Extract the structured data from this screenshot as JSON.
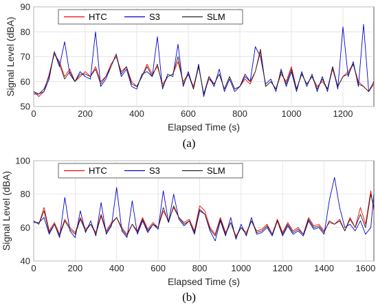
{
  "chart_data": [
    {
      "type": "line",
      "panel_label": "(a)",
      "xlabel": "Elapsed Time (s)",
      "ylabel": "Signal Level (dBA)",
      "xlim": [
        0,
        1320
      ],
      "ylim": [
        50,
        90
      ],
      "xticks": [
        "0",
        "200",
        "400",
        "600",
        "800",
        "1000",
        "1200"
      ],
      "yticks": [
        "50",
        "60",
        "70",
        "80",
        "90"
      ],
      "grid": true,
      "legend": "top-left",
      "series": [
        {
          "name": "HTC",
          "color": "#ff0000",
          "x": [
            0,
            20,
            40,
            60,
            80,
            100,
            120,
            140,
            160,
            180,
            200,
            220,
            240,
            260,
            280,
            300,
            320,
            340,
            360,
            380,
            400,
            420,
            440,
            460,
            480,
            500,
            520,
            540,
            560,
            580,
            600,
            620,
            640,
            660,
            680,
            700,
            720,
            740,
            760,
            780,
            800,
            820,
            840,
            860,
            880,
            900,
            920,
            940,
            960,
            980,
            1000,
            1020,
            1040,
            1060,
            1080,
            1100,
            1120,
            1140,
            1160,
            1180,
            1200,
            1220,
            1240,
            1260,
            1280,
            1300,
            1320
          ],
          "y": [
            56,
            54,
            56,
            63,
            71,
            68,
            62,
            65,
            60,
            62,
            64,
            62,
            66,
            60,
            62,
            67,
            70,
            64,
            66,
            60,
            58,
            62,
            67,
            63,
            66,
            59,
            62,
            63,
            68,
            60,
            63,
            58,
            66,
            55,
            61,
            59,
            63,
            57,
            62,
            57,
            58,
            61,
            59,
            64,
            72,
            58,
            60,
            57,
            63,
            60,
            66,
            57,
            63,
            59,
            62,
            58,
            60,
            57,
            65,
            58,
            62,
            64,
            67,
            60,
            58,
            56,
            59
          ]
        },
        {
          "name": "S3",
          "color": "#0000cc",
          "x": [
            0,
            20,
            40,
            60,
            80,
            100,
            120,
            140,
            160,
            180,
            200,
            220,
            240,
            260,
            280,
            300,
            320,
            340,
            360,
            380,
            400,
            420,
            440,
            460,
            480,
            500,
            520,
            540,
            560,
            580,
            600,
            620,
            640,
            660,
            680,
            700,
            720,
            740,
            760,
            780,
            800,
            820,
            840,
            860,
            880,
            900,
            920,
            940,
            960,
            980,
            1000,
            1020,
            1040,
            1060,
            1080,
            1100,
            1120,
            1140,
            1160,
            1180,
            1200,
            1220,
            1240,
            1260,
            1280,
            1300,
            1320
          ],
          "y": [
            55,
            55,
            56,
            61,
            72,
            66,
            76,
            63,
            60,
            64,
            62,
            61,
            80,
            58,
            61,
            66,
            71,
            62,
            65,
            58,
            57,
            63,
            64,
            62,
            78,
            57,
            63,
            62,
            75,
            58,
            64,
            57,
            67,
            54,
            62,
            58,
            65,
            56,
            61,
            56,
            58,
            63,
            60,
            74,
            70,
            59,
            61,
            56,
            65,
            58,
            64,
            56,
            64,
            58,
            63,
            56,
            62,
            56,
            66,
            57,
            82,
            62,
            68,
            58,
            83,
            56,
            60
          ]
        },
        {
          "name": "SLM",
          "color": "#222222",
          "x": [
            0,
            20,
            40,
            60,
            80,
            100,
            120,
            140,
            160,
            180,
            200,
            220,
            240,
            260,
            280,
            300,
            320,
            340,
            360,
            380,
            400,
            420,
            440,
            460,
            480,
            500,
            520,
            540,
            560,
            580,
            600,
            620,
            640,
            660,
            680,
            700,
            720,
            740,
            760,
            780,
            800,
            820,
            840,
            860,
            880,
            900,
            920,
            940,
            960,
            980,
            1000,
            1020,
            1040,
            1060,
            1080,
            1100,
            1120,
            1140,
            1160,
            1180,
            1200,
            1220,
            1240,
            1260,
            1280,
            1300,
            1320
          ],
          "y": [
            56,
            55,
            57,
            62,
            72,
            67,
            61,
            64,
            60,
            63,
            63,
            62,
            65,
            59,
            62,
            66,
            71,
            63,
            66,
            59,
            58,
            62,
            66,
            62,
            67,
            58,
            62,
            63,
            70,
            59,
            63,
            57,
            66,
            55,
            62,
            59,
            63,
            57,
            62,
            57,
            58,
            62,
            60,
            64,
            73,
            58,
            60,
            57,
            64,
            59,
            65,
            57,
            63,
            59,
            62,
            57,
            61,
            57,
            66,
            58,
            62,
            63,
            67,
            59,
            58,
            56,
            60
          ]
        }
      ]
    },
    {
      "type": "line",
      "panel_label": "(b)",
      "xlabel": "Elapsed Time (s)",
      "ylabel": "Signal Level (dBA)",
      "xlim": [
        0,
        1640
      ],
      "ylim": [
        40,
        100
      ],
      "xticks": [
        "0",
        "200",
        "400",
        "600",
        "800",
        "1000",
        "1200",
        "1400",
        "1600"
      ],
      "yticks": [
        "40",
        "60",
        "80",
        "100"
      ],
      "grid": true,
      "legend": "top-left",
      "series": [
        {
          "name": "HTC",
          "color": "#ff0000",
          "x": [
            0,
            25,
            50,
            75,
            100,
            125,
            150,
            175,
            200,
            225,
            250,
            275,
            300,
            325,
            350,
            375,
            400,
            425,
            450,
            475,
            500,
            525,
            550,
            575,
            600,
            625,
            650,
            675,
            700,
            725,
            750,
            775,
            800,
            825,
            850,
            875,
            900,
            925,
            950,
            975,
            1000,
            1025,
            1050,
            1075,
            1100,
            1125,
            1150,
            1175,
            1200,
            1225,
            1250,
            1275,
            1300,
            1325,
            1350,
            1375,
            1400,
            1425,
            1450,
            1475,
            1500,
            1525,
            1550,
            1575,
            1600,
            1625,
            1640
          ],
          "y": [
            64,
            62,
            72,
            58,
            63,
            56,
            65,
            60,
            57,
            66,
            59,
            62,
            57,
            68,
            58,
            63,
            66,
            60,
            56,
            62,
            58,
            66,
            59,
            63,
            60,
            70,
            64,
            72,
            66,
            63,
            65,
            58,
            73,
            70,
            60,
            56,
            66,
            57,
            63,
            55,
            60,
            57,
            64,
            58,
            59,
            62,
            56,
            65,
            57,
            63,
            58,
            60,
            56,
            66,
            61,
            62,
            58,
            63,
            62,
            65,
            58,
            66,
            60,
            72,
            62,
            82,
            70
          ]
        },
        {
          "name": "S3",
          "color": "#0000cc",
          "x": [
            0,
            25,
            50,
            75,
            100,
            125,
            150,
            175,
            200,
            225,
            250,
            275,
            300,
            325,
            350,
            375,
            400,
            425,
            450,
            475,
            500,
            525,
            550,
            575,
            600,
            625,
            650,
            675,
            700,
            725,
            750,
            775,
            800,
            825,
            850,
            875,
            900,
            925,
            950,
            975,
            1000,
            1025,
            1050,
            1075,
            1100,
            1125,
            1150,
            1175,
            1200,
            1225,
            1250,
            1275,
            1300,
            1325,
            1350,
            1375,
            1400,
            1425,
            1450,
            1475,
            1500,
            1525,
            1550,
            1575,
            1600,
            1625,
            1640
          ],
          "y": [
            63,
            63,
            66,
            56,
            62,
            54,
            78,
            58,
            54,
            70,
            57,
            64,
            55,
            75,
            56,
            61,
            84,
            58,
            54,
            76,
            56,
            64,
            57,
            62,
            59,
            82,
            63,
            80,
            65,
            61,
            64,
            56,
            70,
            68,
            58,
            52,
            64,
            55,
            66,
            53,
            62,
            55,
            66,
            56,
            57,
            60,
            55,
            64,
            55,
            61,
            56,
            58,
            55,
            64,
            59,
            60,
            56,
            76,
            90,
            72,
            60,
            62,
            58,
            64,
            56,
            60,
            80
          ]
        },
        {
          "name": "SLM",
          "color": "#222222",
          "x": [
            0,
            25,
            50,
            75,
            100,
            125,
            150,
            175,
            200,
            225,
            250,
            275,
            300,
            325,
            350,
            375,
            400,
            425,
            450,
            475,
            500,
            525,
            550,
            575,
            600,
            625,
            650,
            675,
            700,
            725,
            750,
            775,
            800,
            825,
            850,
            875,
            900,
            925,
            950,
            975,
            1000,
            1025,
            1050,
            1075,
            1100,
            1125,
            1150,
            1175,
            1200,
            1225,
            1250,
            1275,
            1300,
            1325,
            1350,
            1375,
            1400,
            1425,
            1450,
            1475,
            1500,
            1525,
            1550,
            1575,
            1600,
            1625,
            1640
          ],
          "y": [
            64,
            62,
            70,
            57,
            62,
            55,
            64,
            59,
            56,
            65,
            58,
            62,
            56,
            67,
            57,
            62,
            66,
            59,
            55,
            62,
            57,
            65,
            58,
            62,
            60,
            72,
            63,
            73,
            66,
            62,
            64,
            57,
            71,
            68,
            59,
            55,
            65,
            56,
            63,
            54,
            60,
            56,
            64,
            57,
            58,
            61,
            56,
            64,
            56,
            62,
            57,
            59,
            56,
            65,
            60,
            61,
            57,
            64,
            62,
            64,
            58,
            65,
            60,
            68,
            60,
            80,
            72
          ]
        }
      ]
    }
  ]
}
